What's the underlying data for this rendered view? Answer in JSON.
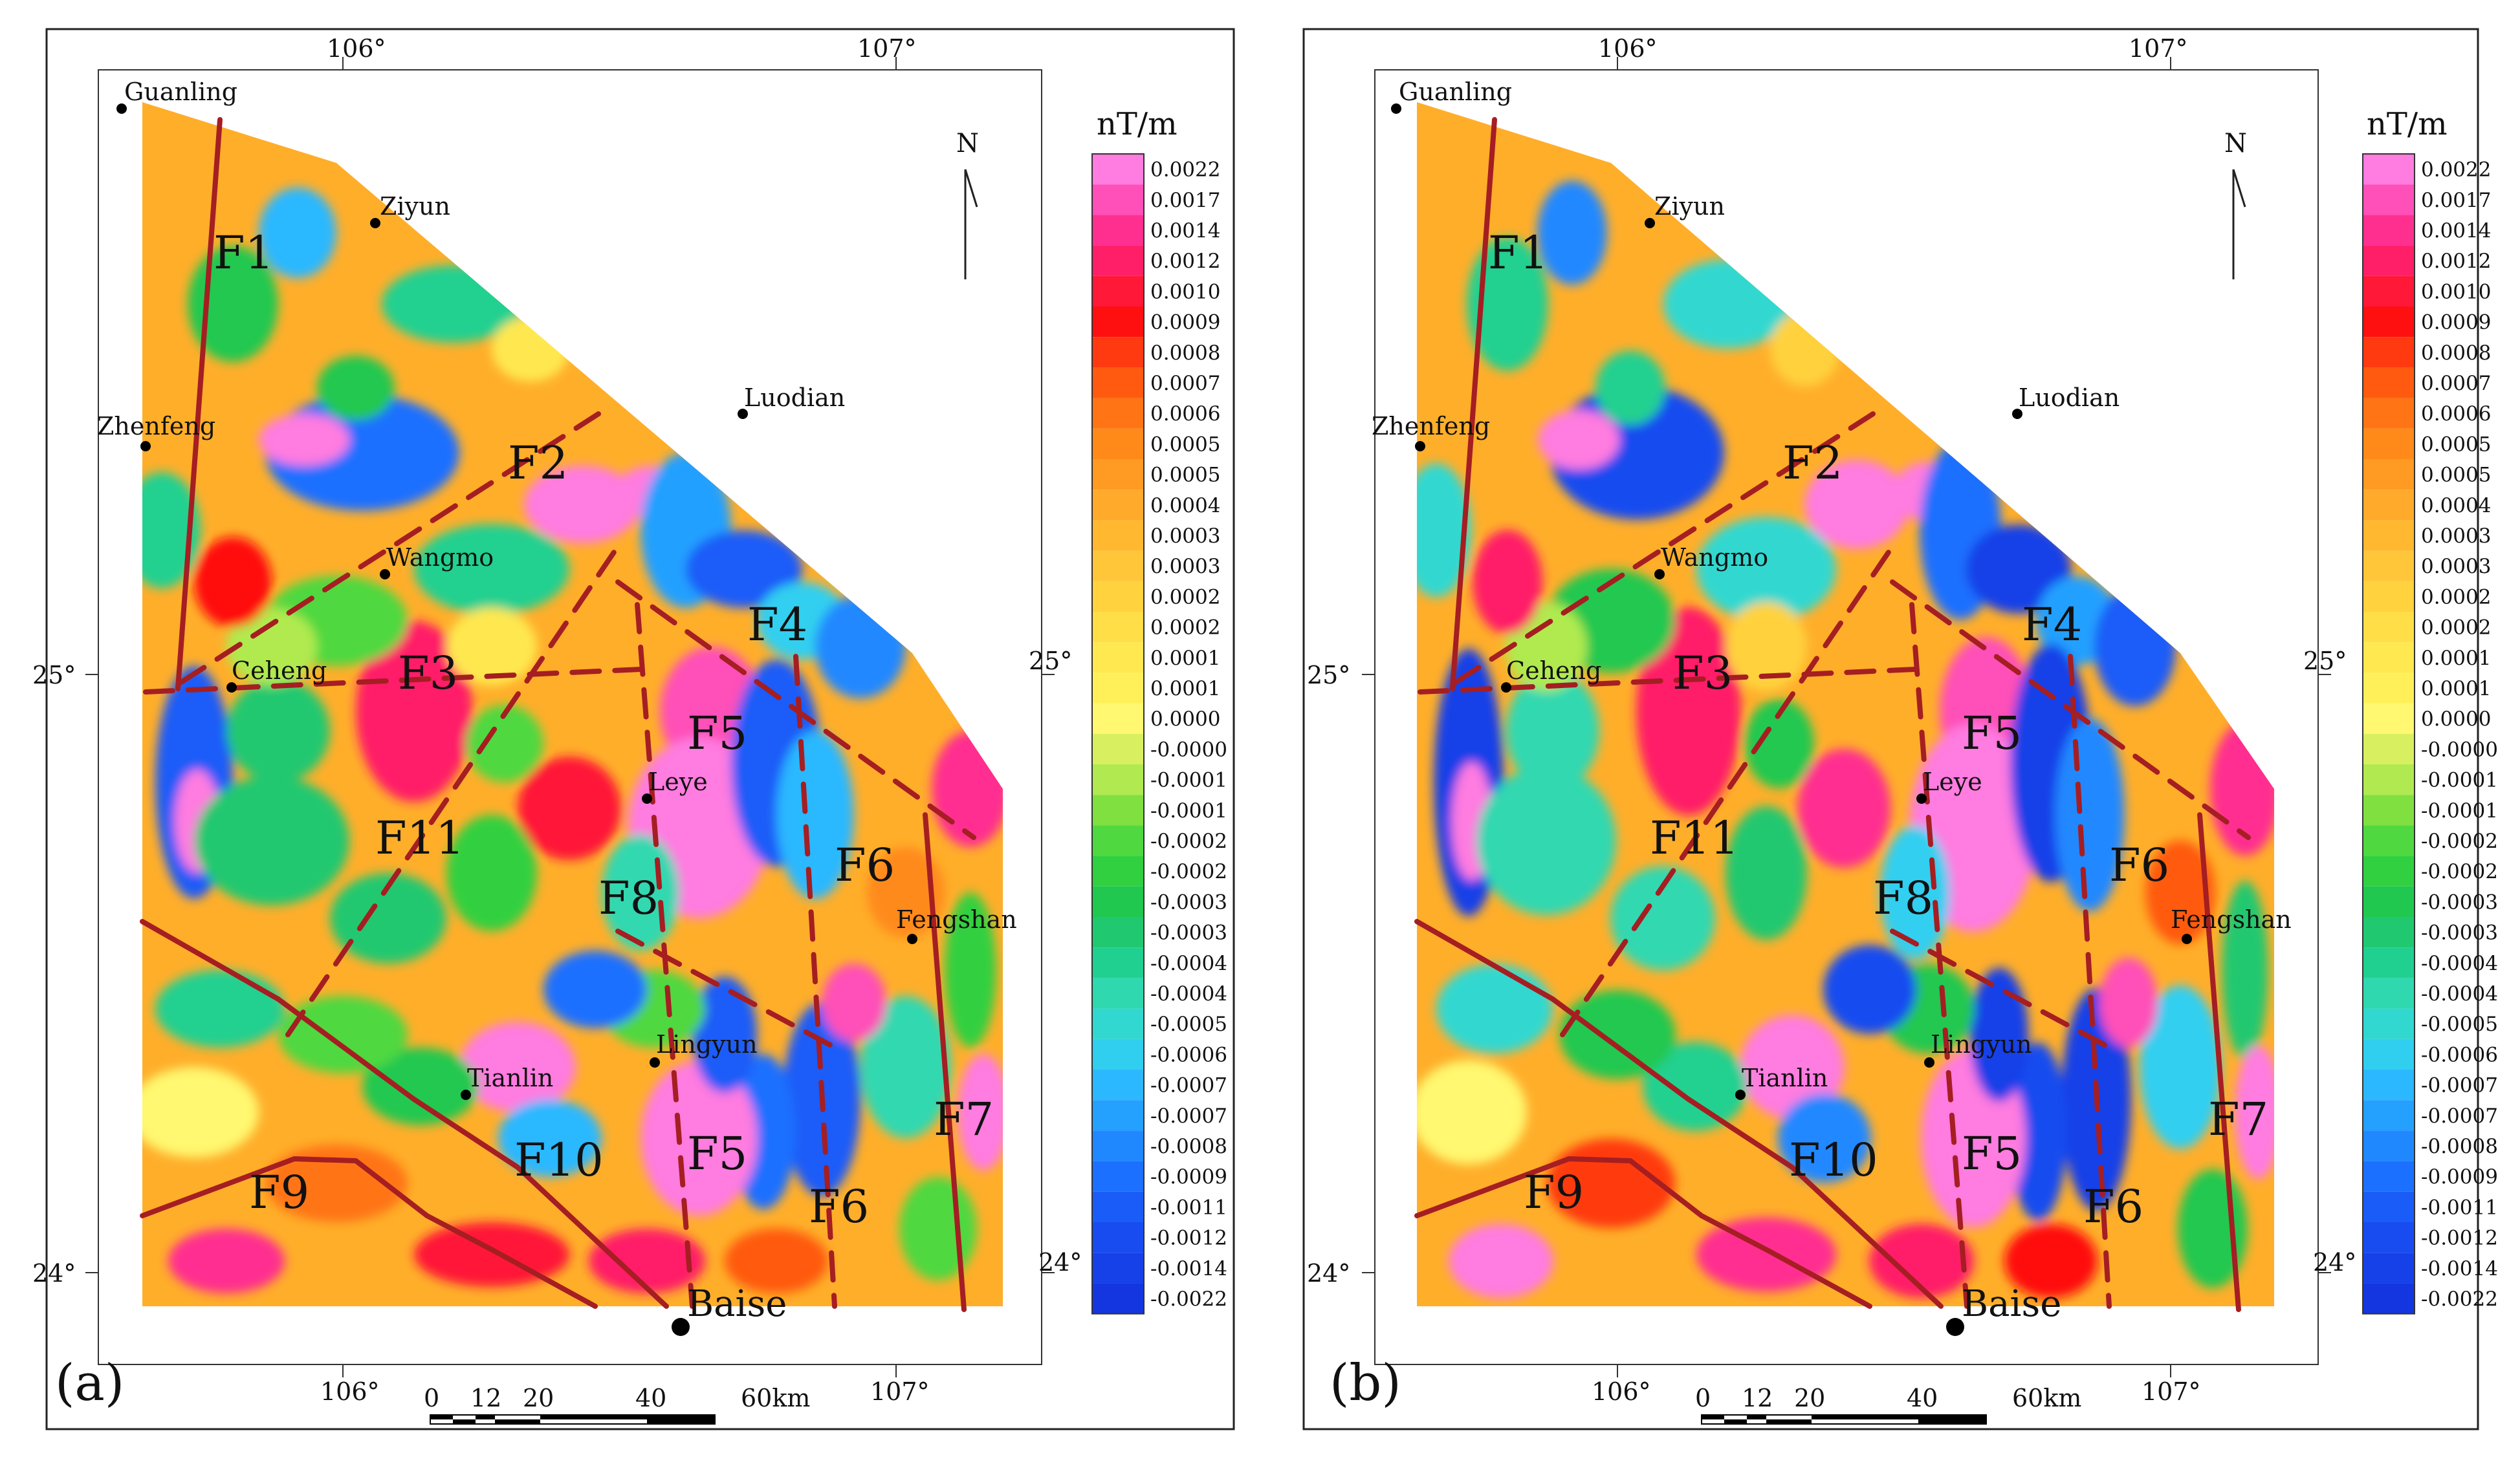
{
  "panels": [
    {
      "id": "a",
      "panel_label": "(a)",
      "style": "a",
      "unit": "nT/m",
      "north": "N",
      "lon_labels": [
        "106°",
        "107°"
      ],
      "lat_labels": [
        "25°",
        "24°"
      ],
      "scale_labels": [
        "0",
        "12",
        "20",
        "40",
        "60km"
      ],
      "towns": [
        {
          "name": "Guanling",
          "major": false
        },
        {
          "name": "Ziyun",
          "major": false
        },
        {
          "name": "Zhenfeng",
          "major": false
        },
        {
          "name": "Luodian",
          "major": false
        },
        {
          "name": "Wangmo",
          "major": false
        },
        {
          "name": "Ceheng",
          "major": false
        },
        {
          "name": "Leye",
          "major": false
        },
        {
          "name": "Fengshan",
          "major": false
        },
        {
          "name": "Lingyun",
          "major": false
        },
        {
          "name": "Tianlin",
          "major": false
        },
        {
          "name": "Baise",
          "major": true
        }
      ],
      "faults": [
        "F1",
        "F2",
        "F3",
        "F4",
        "F5",
        "F5",
        "F6",
        "F6",
        "F7",
        "F8",
        "F9",
        "F10",
        "F11"
      ]
    },
    {
      "id": "b",
      "panel_label": "(b)",
      "style": "b",
      "unit": "nT/m",
      "north": "N",
      "lon_labels": [
        "106°",
        "107°"
      ],
      "lat_labels": [
        "25°",
        "24°"
      ],
      "scale_labels": [
        "0",
        "12",
        "20",
        "40",
        "60km"
      ],
      "towns": [
        {
          "name": "Guanling",
          "major": false
        },
        {
          "name": "Ziyun",
          "major": false
        },
        {
          "name": "Zhenfeng",
          "major": false
        },
        {
          "name": "Luodian",
          "major": false
        },
        {
          "name": "Wangmo",
          "major": false
        },
        {
          "name": "Ceheng",
          "major": false
        },
        {
          "name": "Leye",
          "major": false
        },
        {
          "name": "Fengshan",
          "major": false
        },
        {
          "name": "Lingyun",
          "major": false
        },
        {
          "name": "Tianlin",
          "major": false
        },
        {
          "name": "Baise",
          "major": true
        }
      ],
      "faults": [
        "F1",
        "F2",
        "F3",
        "F4",
        "F5",
        "F5",
        "F6",
        "F6",
        "F7",
        "F8",
        "F9",
        "F10",
        "F11"
      ]
    }
  ],
  "legend": {
    "values": [
      "0.0022",
      "0.0017",
      "0.0014",
      "0.0012",
      "0.0010",
      "0.0009",
      "0.0008",
      "0.0007",
      "0.0006",
      "0.0005",
      "0.0005",
      "0.0004",
      "0.0003",
      "0.0003",
      "0.0002",
      "0.0002",
      "0.0001",
      "0.0001",
      "0.0000",
      "-0.0000",
      "-0.0001",
      "-0.0001",
      "-0.0002",
      "-0.0002",
      "-0.0003",
      "-0.0003",
      "-0.0004",
      "-0.0004",
      "-0.0005",
      "-0.0006",
      "-0.0007",
      "-0.0007",
      "-0.0008",
      "-0.0009",
      "-0.0011",
      "-0.0012",
      "-0.0014",
      "-0.0022"
    ],
    "colors": [
      "#ff7ce0",
      "#ff4fb8",
      "#ff2f90",
      "#ff1f68",
      "#ff1838",
      "#ff1010",
      "#ff3a10",
      "#ff5a10",
      "#ff7414",
      "#ff8a1a",
      "#ff9a22",
      "#ffaa2a",
      "#ffb830",
      "#ffc63a",
      "#ffd23e",
      "#ffde48",
      "#ffe850",
      "#fff05a",
      "#fff870",
      "#d8f060",
      "#b0ea50",
      "#80e040",
      "#50d840",
      "#30d040",
      "#20c850",
      "#20c870",
      "#20d090",
      "#30d8b0",
      "#30d8d0",
      "#30cff0",
      "#2cb8ff",
      "#24a0ff",
      "#2088ff",
      "#1c70ff",
      "#1a5cf8",
      "#184cf0",
      "#1640e8",
      "#1436e0"
    ]
  }
}
